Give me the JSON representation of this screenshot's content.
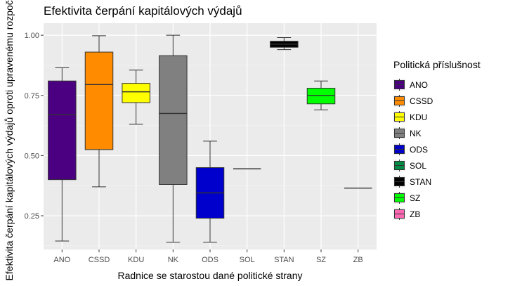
{
  "chart_data": {
    "type": "boxplot",
    "title": "Efektivita čerpání kapitálových výdajů",
    "xlabel": "Radnice se starostou dané politické strany",
    "ylabel": "Efektivita čerpání kapitálových výdajů oproti upravenému rozpočtu",
    "ylim": [
      0.11,
      1.05
    ],
    "yticks": [
      0.25,
      0.5,
      0.75,
      1.0
    ],
    "ytick_labels": [
      "0.25",
      "0.50",
      "0.75",
      "1.00"
    ],
    "grid": true,
    "legend_title": "Politická příslušnost",
    "legend_position": "right",
    "categories": [
      "ANO",
      "CSSD",
      "KDU",
      "NK",
      "ODS",
      "SOL",
      "STAN",
      "SZ",
      "ZB"
    ],
    "colors": [
      "#4B0082",
      "#FF8C00",
      "#FFFF00",
      "#808080",
      "#0000CD",
      "#008B45",
      "#000000",
      "#00FF00",
      "#FF69B4"
    ],
    "boxes": [
      {
        "name": "ANO",
        "min": 0.145,
        "q1": 0.4,
        "median": 0.67,
        "q3": 0.81,
        "max": 0.865
      },
      {
        "name": "CSSD",
        "min": 0.37,
        "q1": 0.525,
        "median": 0.795,
        "q3": 0.93,
        "max": 0.998
      },
      {
        "name": "KDU",
        "min": 0.63,
        "q1": 0.72,
        "median": 0.765,
        "q3": 0.8,
        "max": 0.855
      },
      {
        "name": "NK",
        "min": 0.14,
        "q1": 0.38,
        "median": 0.675,
        "q3": 0.915,
        "max": 1.0
      },
      {
        "name": "ODS",
        "min": 0.14,
        "q1": 0.24,
        "median": 0.345,
        "q3": 0.45,
        "max": 0.56
      },
      {
        "name": "SOL",
        "min": 0.445,
        "q1": 0.445,
        "median": 0.445,
        "q3": 0.445,
        "max": 0.445
      },
      {
        "name": "STAN",
        "min": 0.94,
        "q1": 0.95,
        "median": 0.963,
        "q3": 0.975,
        "max": 0.99
      },
      {
        "name": "SZ",
        "min": 0.69,
        "q1": 0.715,
        "median": 0.75,
        "q3": 0.78,
        "max": 0.81
      },
      {
        "name": "ZB",
        "min": 0.365,
        "q1": 0.365,
        "median": 0.365,
        "q3": 0.365,
        "max": 0.365
      }
    ]
  }
}
